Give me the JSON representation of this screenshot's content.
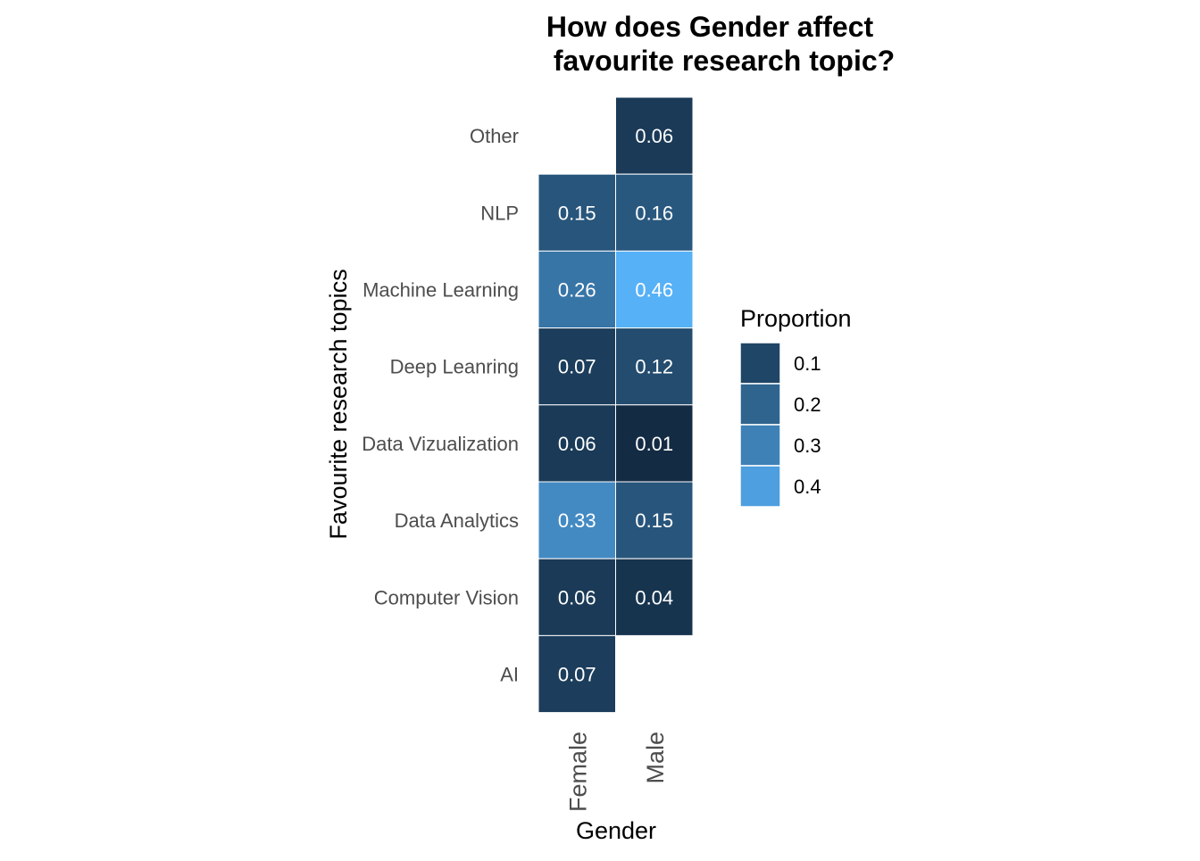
{
  "chart_data": {
    "type": "heatmap",
    "title_line1": "How does Gender affect",
    "title_line2": "favourite research topic?",
    "xlabel": "Gender",
    "ylabel": "Favourite research topics",
    "x_categories": [
      "Female",
      "Male"
    ],
    "y_categories": [
      "Other",
      "NLP",
      "Machine Learning",
      "Deep Leanring",
      "Data Vizualization",
      "Data Analytics",
      "Computer Vision",
      "AI"
    ],
    "cells": [
      {
        "x": "Male",
        "y": "Other",
        "value": 0.06,
        "label": "0.06"
      },
      {
        "x": "Female",
        "y": "NLP",
        "value": 0.15,
        "label": "0.15"
      },
      {
        "x": "Male",
        "y": "NLP",
        "value": 0.16,
        "label": "0.16"
      },
      {
        "x": "Female",
        "y": "Machine Learning",
        "value": 0.26,
        "label": "0.26"
      },
      {
        "x": "Male",
        "y": "Machine Learning",
        "value": 0.46,
        "label": "0.46"
      },
      {
        "x": "Female",
        "y": "Deep Leanring",
        "value": 0.07,
        "label": "0.07"
      },
      {
        "x": "Male",
        "y": "Deep Leanring",
        "value": 0.12,
        "label": "0.12"
      },
      {
        "x": "Female",
        "y": "Data Vizualization",
        "value": 0.06,
        "label": "0.06"
      },
      {
        "x": "Male",
        "y": "Data Vizualization",
        "value": 0.01,
        "label": "0.01"
      },
      {
        "x": "Female",
        "y": "Data Analytics",
        "value": 0.33,
        "label": "0.33"
      },
      {
        "x": "Male",
        "y": "Data Analytics",
        "value": 0.15,
        "label": "0.15"
      },
      {
        "x": "Female",
        "y": "Computer Vision",
        "value": 0.06,
        "label": "0.06"
      },
      {
        "x": "Male",
        "y": "Computer Vision",
        "value": 0.04,
        "label": "0.04"
      },
      {
        "x": "Female",
        "y": "AI",
        "value": 0.07,
        "label": "0.07"
      }
    ],
    "color_scale": {
      "low": "#132B43",
      "high": "#56B1F7",
      "domain": [
        0.01,
        0.46
      ]
    },
    "legend": {
      "title": "Proportion",
      "placement": "right",
      "breaks": [
        {
          "value": 0.1,
          "label": "0.1"
        },
        {
          "value": 0.2,
          "label": "0.2"
        },
        {
          "value": 0.3,
          "label": "0.3"
        },
        {
          "value": 0.4,
          "label": "0.4"
        }
      ]
    },
    "grid": false
  }
}
